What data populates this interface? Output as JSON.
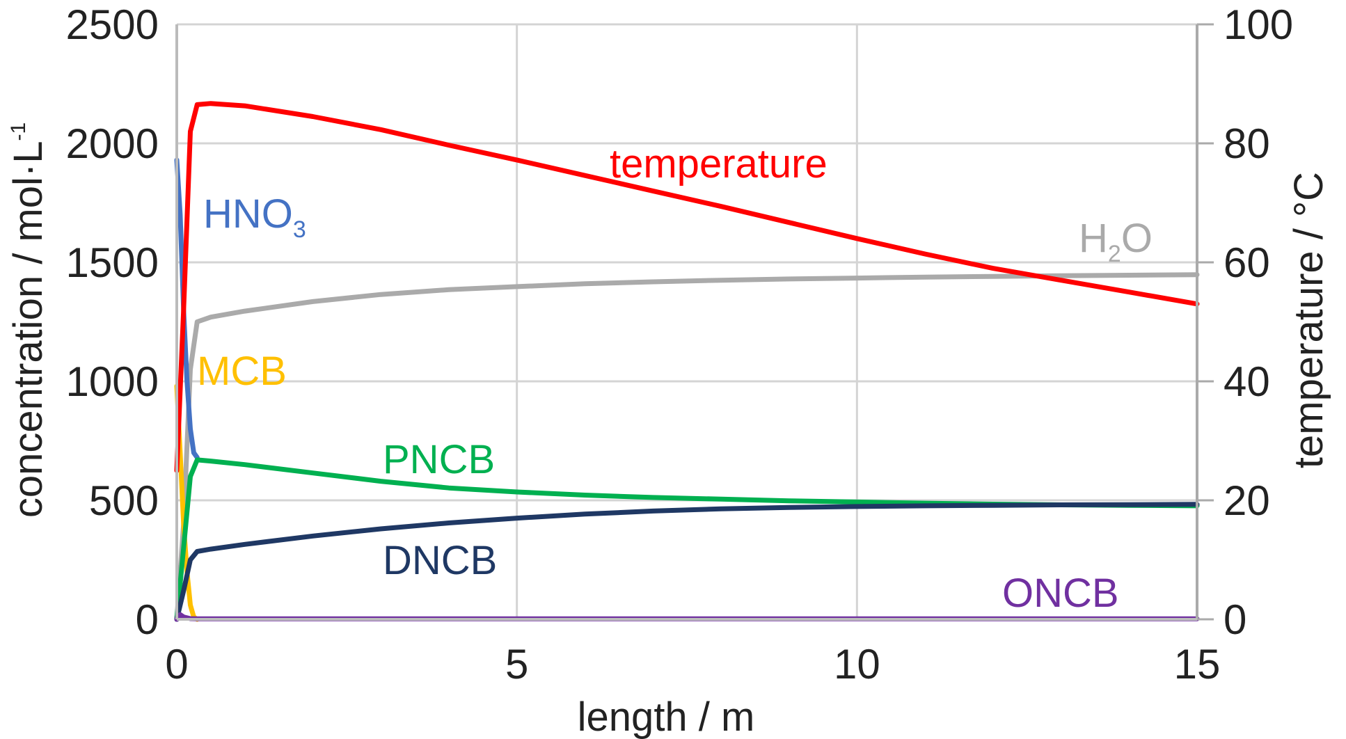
{
  "chart_data": {
    "type": "line",
    "xlabel": "length / m",
    "ylabel_left": "concentration / mol·L",
    "ylabel_left_superscript": "-1",
    "ylabel_right": "temperature / °C",
    "xlim": [
      0,
      15
    ],
    "ylim_left": [
      0,
      2500
    ],
    "ylim_right": [
      0,
      100
    ],
    "x_ticks": [
      "0",
      "5",
      "10",
      "15"
    ],
    "y_left_ticks": [
      "0",
      "500",
      "1000",
      "1500",
      "2000",
      "2500"
    ],
    "y_right_ticks": [
      "0",
      "20",
      "40",
      "60",
      "80",
      "100"
    ],
    "grid": true,
    "series": [
      {
        "name": "H2O",
        "label_text": "H",
        "label_sub": "2",
        "label_tail": "O",
        "axis": "left",
        "color": "#aaaaaa",
        "x": [
          0,
          0.1,
          0.2,
          0.3,
          0.5,
          1,
          2,
          3,
          4,
          5,
          6,
          7,
          8,
          9,
          10,
          11,
          12,
          13,
          14,
          15
        ],
        "y": [
          0,
          400,
          1050,
          1250,
          1270,
          1295,
          1335,
          1365,
          1385,
          1398,
          1410,
          1418,
          1425,
          1430,
          1434,
          1438,
          1441,
          1444,
          1446,
          1448
        ]
      },
      {
        "name": "HNO3",
        "label_text": "HNO",
        "label_sub": "3",
        "label_tail": "",
        "axis": "left",
        "color": "#4472c4",
        "x": [
          0,
          0.05,
          0.1,
          0.15,
          0.2,
          0.25,
          0.3
        ],
        "y": [
          1930,
          1700,
          1300,
          1000,
          800,
          700,
          680
        ]
      },
      {
        "name": "MCB",
        "label_text": "MCB",
        "label_sub": "",
        "label_tail": "",
        "axis": "left",
        "color": "#ffc000",
        "x": [
          0,
          0.05,
          0.1,
          0.15,
          0.2,
          0.25,
          0.3
        ],
        "y": [
          980,
          700,
          400,
          200,
          60,
          10,
          0
        ]
      },
      {
        "name": "PNCB",
        "label_text": "PNCB",
        "label_sub": "",
        "label_tail": "",
        "axis": "left",
        "color": "#00b050",
        "x": [
          0,
          0.1,
          0.2,
          0.3,
          0.5,
          1,
          2,
          3,
          4,
          5,
          6,
          7,
          8,
          9,
          10,
          11,
          12,
          13,
          14,
          15
        ],
        "y": [
          0,
          300,
          600,
          670,
          665,
          650,
          615,
          580,
          552,
          535,
          522,
          512,
          505,
          498,
          493,
          488,
          484,
          481,
          479,
          477
        ]
      },
      {
        "name": "DNCB",
        "label_text": "DNCB",
        "label_sub": "",
        "label_tail": "",
        "axis": "left",
        "color": "#1f3864",
        "x": [
          0,
          0.1,
          0.2,
          0.3,
          0.5,
          1,
          2,
          3,
          4,
          5,
          6,
          7,
          8,
          9,
          10,
          11,
          12,
          13,
          14,
          15
        ],
        "y": [
          0,
          120,
          250,
          285,
          295,
          315,
          350,
          380,
          405,
          425,
          442,
          455,
          464,
          470,
          474,
          477,
          479,
          481,
          482,
          483
        ]
      },
      {
        "name": "ONCB",
        "label_text": "ONCB",
        "label_sub": "",
        "label_tail": "",
        "axis": "left",
        "color": "#7030a0",
        "x": [
          0,
          0.05,
          0.1,
          0.2,
          0.3,
          15
        ],
        "y": [
          0,
          20,
          10,
          3,
          2,
          2
        ]
      },
      {
        "name": "temperature",
        "label_text": "temperature",
        "label_sub": "",
        "label_tail": "",
        "axis": "right",
        "color": "#ff0000",
        "x": [
          0,
          0.1,
          0.2,
          0.3,
          0.5,
          1,
          2,
          3,
          4,
          5,
          6,
          7,
          8,
          9,
          10,
          11,
          12,
          13,
          14,
          15
        ],
        "y": [
          25,
          52,
          82,
          86.5,
          86.7,
          86.3,
          84.5,
          82.3,
          79.7,
          77.2,
          74.6,
          72.0,
          69.4,
          66.7,
          64.0,
          61.4,
          59.0,
          57.0,
          55.0,
          53.0
        ]
      }
    ]
  }
}
